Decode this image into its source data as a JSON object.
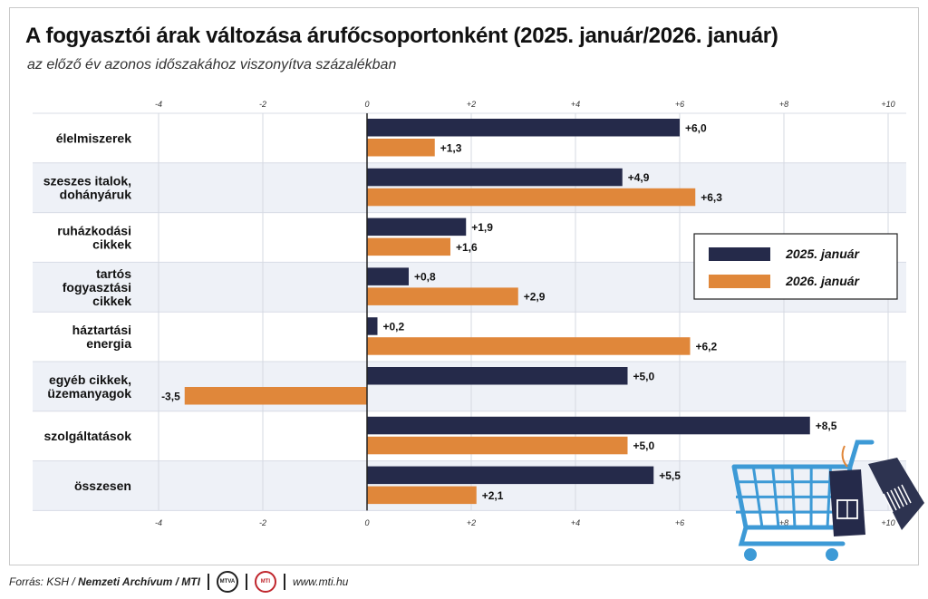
{
  "title": "A fogyasztói árak változása árufőcsoportonként (2025. január/2026. január)",
  "subtitle": "az előző év azonos időszakához viszonyítva százalékban",
  "footer": {
    "source_prefix": "Forrás: KSH / ",
    "source_bold": "Nemzeti Archívum / MTI",
    "logo1": "MTVA",
    "logo2": "MTI",
    "url": "www.mti.hu"
  },
  "colors": {
    "series1": "#252a4a",
    "series2": "#e0873a",
    "band": "#eef1f7"
  },
  "chart_data": {
    "type": "bar",
    "orientation": "horizontal",
    "categories": [
      [
        "élelmiszerek"
      ],
      [
        "szeszes italok,",
        "dohányáruk"
      ],
      [
        "ruházkodási",
        "cikkek"
      ],
      [
        "tartós",
        "fogyasztási",
        "cikkek"
      ],
      [
        "háztartási",
        "energia"
      ],
      [
        "egyéb cikkek,",
        "üzemanyagok"
      ],
      [
        "szolgáltatások"
      ],
      [
        "összesen"
      ]
    ],
    "series": [
      {
        "name": "2025. január",
        "values": [
          6.0,
          4.9,
          1.9,
          0.8,
          0.2,
          5.0,
          8.5,
          5.5
        ],
        "labels": [
          "+6,0",
          "+4,9",
          "+1,9",
          "+0,8",
          "+0,2",
          "+5,0",
          "+8,5",
          "+5,5"
        ]
      },
      {
        "name": "2026. január",
        "values": [
          1.3,
          6.3,
          1.6,
          2.9,
          6.2,
          -3.5,
          5.0,
          2.1
        ],
        "labels": [
          "+1,3",
          "+6,3",
          "+1,6",
          "+2,9",
          "+6,2",
          "-3,5",
          "+5,0",
          "+2,1"
        ]
      }
    ],
    "xlim": [
      -4,
      10
    ],
    "ticks": [
      -4,
      -2,
      0,
      2,
      4,
      6,
      8,
      10
    ],
    "tick_labels": [
      "-4",
      "-2",
      "0",
      "+2",
      "+4",
      "+6",
      "+8",
      "+10"
    ],
    "grid": true,
    "legend_position": "right"
  }
}
